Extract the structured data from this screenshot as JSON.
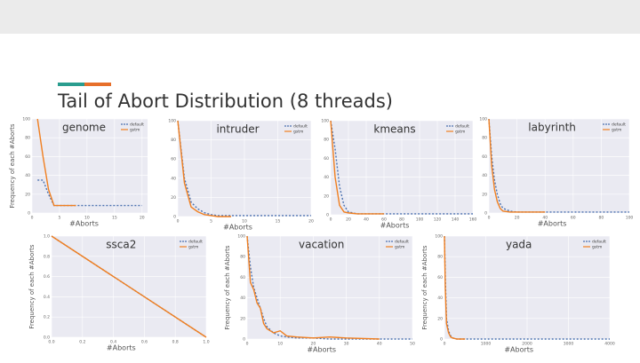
{
  "title": "Tail of Abort Distribution (8 threads)",
  "chart_data": [
    {
      "type": "line",
      "title": "genome",
      "xlabel": "#Aborts",
      "ylabel": "Frequency of each #Aborts",
      "x": [
        1,
        2,
        3,
        4,
        5,
        6,
        8,
        10,
        12,
        14,
        16,
        18,
        20
      ],
      "series": [
        {
          "name": "default",
          "color": "#4c72b0",
          "dash": true,
          "values": [
            35,
            35,
            20,
            8,
            8,
            8,
            8,
            8,
            8,
            8,
            8,
            8,
            8
          ]
        },
        {
          "name": "gstm",
          "color": "#f07f20",
          "dash": false,
          "values": [
            100,
            60,
            25,
            8,
            8,
            8,
            8,
            null,
            null,
            null,
            null,
            null,
            null
          ]
        }
      ],
      "xlim": [
        0,
        21
      ],
      "xticks": [
        0,
        5,
        10,
        15,
        20
      ],
      "ylim": [
        0,
        100
      ],
      "yticks": [
        0,
        20,
        40,
        60,
        80,
        100
      ]
    },
    {
      "type": "line",
      "title": "intruder",
      "xlabel": "#Aborts",
      "x": [
        0,
        1,
        2,
        3,
        4,
        5,
        6,
        8,
        10,
        15,
        20
      ],
      "series": [
        {
          "name": "default",
          "color": "#4c72b0",
          "dash": true,
          "values": [
            100,
            40,
            15,
            8,
            4,
            2,
            1,
            1,
            1,
            1,
            1
          ]
        },
        {
          "name": "gstm",
          "color": "#f07f20",
          "dash": false,
          "values": [
            100,
            35,
            10,
            5,
            2,
            1,
            0,
            0,
            null,
            null,
            null
          ]
        }
      ],
      "xlim": [
        0,
        20
      ],
      "xticks": [
        0,
        5,
        10,
        15,
        20
      ],
      "ylim": [
        0,
        100
      ],
      "yticks": [
        0,
        20,
        40,
        60,
        80,
        100
      ]
    },
    {
      "type": "line",
      "title": "kmeans",
      "xlabel": "#Aborts",
      "x": [
        0,
        5,
        10,
        15,
        20,
        30,
        40,
        60,
        80,
        100,
        120,
        140,
        160
      ],
      "series": [
        {
          "name": "default",
          "color": "#4c72b0",
          "dash": true,
          "values": [
            100,
            70,
            30,
            10,
            3,
            1,
            1,
            1,
            1,
            1,
            1,
            1,
            1
          ]
        },
        {
          "name": "gstm",
          "color": "#f07f20",
          "dash": false,
          "values": [
            100,
            40,
            10,
            3,
            2,
            1,
            1,
            1,
            null,
            null,
            null,
            null,
            null
          ]
        }
      ],
      "xlim": [
        0,
        160
      ],
      "xticks": [
        0,
        20,
        40,
        60,
        80,
        100,
        120,
        140,
        160
      ],
      "ylim": [
        0,
        100
      ],
      "yticks": [
        0,
        20,
        40,
        60,
        80,
        100
      ]
    },
    {
      "type": "line",
      "title": "labyrinth",
      "xlabel": "#Aborts",
      "x": [
        0,
        2,
        4,
        6,
        8,
        10,
        15,
        20,
        30,
        40,
        60,
        80,
        100
      ],
      "series": [
        {
          "name": "default",
          "color": "#4c72b0",
          "dash": true,
          "values": [
            100,
            60,
            35,
            20,
            10,
            5,
            2,
            1,
            1,
            1,
            1,
            1,
            1
          ]
        },
        {
          "name": "gstm",
          "color": "#f07f20",
          "dash": false,
          "values": [
            100,
            50,
            25,
            12,
            5,
            2,
            1,
            1,
            1,
            1,
            null,
            null,
            null
          ]
        }
      ],
      "xlim": [
        0,
        100
      ],
      "xticks": [
        0,
        20,
        40,
        60,
        80,
        100
      ],
      "ylim": [
        0,
        100
      ],
      "yticks": [
        0,
        20,
        40,
        60,
        80,
        100
      ]
    },
    {
      "type": "line",
      "title": "ssca2",
      "xlabel": "#Aborts",
      "ylabel": "Frequency of each #Aborts",
      "x": [
        0,
        1
      ],
      "series": [
        {
          "name": "default",
          "color": "#4c72b0",
          "dash": true,
          "values": [
            1,
            0
          ]
        },
        {
          "name": "gstm",
          "color": "#f07f20",
          "dash": false,
          "values": [
            1,
            0
          ]
        }
      ],
      "xlim": [
        0,
        1
      ],
      "xticks": [
        {
          "value": 0,
          "label": "0.0"
        },
        0.2,
        0.4,
        0.6,
        0.8,
        {
          "value": 1,
          "label": "1.0"
        }
      ],
      "ylim": [
        0,
        1
      ],
      "yticks": [
        {
          "value": 0,
          "label": "0.0"
        },
        0.2,
        0.4,
        0.6,
        0.8,
        {
          "value": 1,
          "label": "1.0"
        }
      ]
    },
    {
      "type": "line",
      "title": "vacation",
      "xlabel": "#Aborts",
      "ylabel": "Frequency of each #Aborts",
      "x": [
        0,
        1,
        2,
        3,
        4,
        5,
        6,
        8,
        10,
        12,
        15,
        20,
        25,
        30,
        40,
        50
      ],
      "series": [
        {
          "name": "default",
          "color": "#4c72b0",
          "dash": true,
          "values": [
            100,
            70,
            50,
            40,
            30,
            20,
            12,
            6,
            3,
            2,
            1,
            1,
            0,
            0,
            0,
            0
          ]
        },
        {
          "name": "gstm",
          "color": "#f07f20",
          "dash": false,
          "values": [
            100,
            55,
            48,
            35,
            30,
            15,
            10,
            6,
            8,
            3,
            2,
            1,
            2,
            1,
            0,
            null
          ]
        }
      ],
      "xlim": [
        0,
        50
      ],
      "xticks": [
        0,
        10,
        20,
        30,
        40,
        50
      ],
      "ylim": [
        0,
        100
      ],
      "yticks": [
        0,
        20,
        40,
        60,
        80,
        100
      ]
    },
    {
      "type": "line",
      "title": "yada",
      "xlabel": "#Aborts",
      "ylabel": "Frequency of each #Aborts",
      "x": [
        0,
        20,
        50,
        100,
        150,
        200,
        300,
        500,
        1000,
        2000,
        3000,
        4000
      ],
      "series": [
        {
          "name": "default",
          "color": "#4c72b0",
          "dash": true,
          "values": [
            100,
            60,
            20,
            8,
            3,
            1,
            0,
            0,
            0,
            0,
            0,
            0
          ]
        },
        {
          "name": "gstm",
          "color": "#f07f20",
          "dash": false,
          "values": [
            100,
            50,
            15,
            6,
            2,
            1,
            0,
            0,
            null,
            null,
            null,
            null
          ]
        }
      ],
      "xlim": [
        0,
        4000
      ],
      "xticks": [
        0,
        1000,
        2000,
        3000,
        4000
      ],
      "ylim": [
        0,
        100
      ],
      "yticks": [
        0,
        20,
        40,
        60,
        80,
        100
      ]
    }
  ]
}
